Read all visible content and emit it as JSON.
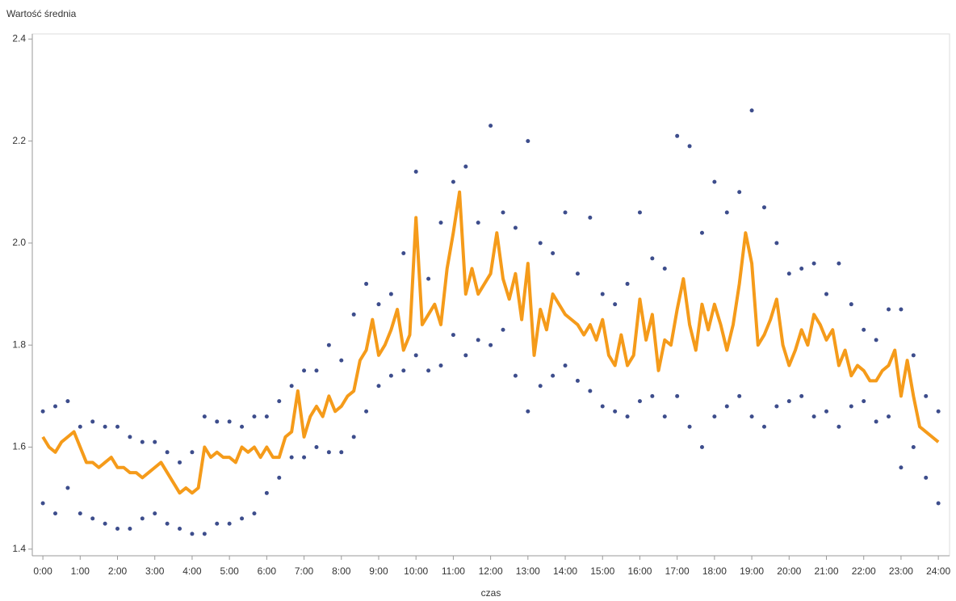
{
  "chart_data": {
    "type": "scatter-line",
    "y_label": "Wartość średnia",
    "x_label": "czas",
    "xlim": [
      -17,
      1458
    ],
    "ylim": [
      1.387,
      2.41
    ],
    "xticks": [
      {
        "value": 0,
        "label": "0:00"
      },
      {
        "value": 60,
        "label": "1:00"
      },
      {
        "value": 120,
        "label": "2:00"
      },
      {
        "value": 180,
        "label": "3:00"
      },
      {
        "value": 240,
        "label": "4:00"
      },
      {
        "value": 300,
        "label": "5:00"
      },
      {
        "value": 360,
        "label": "6:00"
      },
      {
        "value": 420,
        "label": "7:00"
      },
      {
        "value": 480,
        "label": "8:00"
      },
      {
        "value": 540,
        "label": "9:00"
      },
      {
        "value": 600,
        "label": "10:00"
      },
      {
        "value": 660,
        "label": "11:00"
      },
      {
        "value": 720,
        "label": "12:00"
      },
      {
        "value": 780,
        "label": "13:00"
      },
      {
        "value": 840,
        "label": "14:00"
      },
      {
        "value": 900,
        "label": "15:00"
      },
      {
        "value": 960,
        "label": "16:00"
      },
      {
        "value": 1020,
        "label": "17:00"
      },
      {
        "value": 1080,
        "label": "18:00"
      },
      {
        "value": 1140,
        "label": "19:00"
      },
      {
        "value": 1200,
        "label": "20:00"
      },
      {
        "value": 1260,
        "label": "21:00"
      },
      {
        "value": 1320,
        "label": "22:00"
      },
      {
        "value": 1380,
        "label": "23:00"
      },
      {
        "value": 1440,
        "label": "24:00"
      }
    ],
    "yticks": [
      1.4,
      1.6,
      1.8,
      {
        "value": 2,
        "label": "2.0"
      },
      2.2,
      2.4
    ],
    "series": [
      {
        "type": "scatter",
        "color": "#3d4d8c",
        "x": [
          0,
          20,
          40,
          60,
          80,
          100,
          120,
          140,
          160,
          180,
          200,
          220,
          240,
          260,
          280,
          300,
          320,
          340,
          360,
          380,
          400,
          420,
          440,
          460,
          480,
          500,
          520,
          540,
          560,
          580,
          600,
          620,
          640,
          660,
          680,
          700,
          720,
          740,
          760,
          780,
          800,
          820,
          840,
          860,
          880,
          900,
          920,
          940,
          960,
          980,
          1000,
          1020,
          1040,
          1060,
          1080,
          1100,
          1120,
          1140,
          1160,
          1180,
          1200,
          1220,
          1240,
          1260,
          1280,
          1300,
          1320,
          1340,
          1360,
          1380,
          1400,
          1420,
          1440
        ],
        "values": [
          1.67,
          1.68,
          1.69,
          1.64,
          1.65,
          1.64,
          1.64,
          1.62,
          1.61,
          1.61,
          1.59,
          1.57,
          1.59,
          1.66,
          1.65,
          1.65,
          1.64,
          1.66,
          1.66,
          1.69,
          1.72,
          1.75,
          1.75,
          1.8,
          1.77,
          1.86,
          1.92,
          1.88,
          1.9,
          1.98,
          2.14,
          1.93,
          2.04,
          2.12,
          2.15,
          2.04,
          2.23,
          2.06,
          2.03,
          2.2,
          2.0,
          1.98,
          2.06,
          1.94,
          2.05,
          1.9,
          1.88,
          1.92,
          2.06,
          1.97,
          1.95,
          2.21,
          2.19,
          2.02,
          2.12,
          2.06,
          2.1,
          2.26,
          2.07,
          2.0,
          1.94,
          1.95,
          1.96,
          1.9,
          1.96,
          1.88,
          1.83,
          1.81,
          1.87,
          1.87,
          1.78,
          1.7,
          1.67
        ]
      },
      {
        "type": "scatter",
        "color": "#3d4d8c",
        "x": [
          0,
          20,
          40,
          60,
          80,
          100,
          120,
          140,
          160,
          180,
          200,
          220,
          240,
          260,
          280,
          300,
          320,
          340,
          360,
          380,
          400,
          420,
          440,
          460,
          480,
          500,
          520,
          540,
          560,
          580,
          600,
          620,
          640,
          660,
          680,
          700,
          720,
          740,
          760,
          780,
          800,
          820,
          840,
          860,
          880,
          900,
          920,
          940,
          960,
          980,
          1000,
          1020,
          1040,
          1060,
          1080,
          1100,
          1120,
          1140,
          1160,
          1180,
          1200,
          1220,
          1240,
          1260,
          1280,
          1300,
          1320,
          1340,
          1360,
          1380,
          1400,
          1420,
          1440
        ],
        "values": [
          1.49,
          1.47,
          1.52,
          1.47,
          1.46,
          1.45,
          1.44,
          1.44,
          1.46,
          1.47,
          1.45,
          1.44,
          1.43,
          1.43,
          1.45,
          1.45,
          1.46,
          1.47,
          1.51,
          1.54,
          1.58,
          1.58,
          1.6,
          1.59,
          1.59,
          1.62,
          1.67,
          1.72,
          1.74,
          1.75,
          1.78,
          1.75,
          1.76,
          1.82,
          1.78,
          1.81,
          1.8,
          1.83,
          1.74,
          1.67,
          1.72,
          1.74,
          1.76,
          1.73,
          1.71,
          1.68,
          1.67,
          1.66,
          1.69,
          1.7,
          1.66,
          1.7,
          1.64,
          1.6,
          1.66,
          1.68,
          1.7,
          1.66,
          1.64,
          1.68,
          1.69,
          1.7,
          1.66,
          1.67,
          1.64,
          1.68,
          1.69,
          1.65,
          1.66,
          1.56,
          1.6,
          1.54,
          1.49
        ]
      },
      {
        "type": "line",
        "color": "#f59b1a",
        "x": [
          0,
          10,
          20,
          30,
          40,
          50,
          60,
          70,
          80,
          90,
          100,
          110,
          120,
          130,
          140,
          150,
          160,
          170,
          180,
          190,
          200,
          210,
          220,
          230,
          240,
          250,
          260,
          270,
          280,
          290,
          300,
          310,
          320,
          330,
          340,
          350,
          360,
          370,
          380,
          390,
          400,
          410,
          420,
          430,
          440,
          450,
          460,
          470,
          480,
          490,
          500,
          510,
          520,
          530,
          540,
          550,
          560,
          570,
          580,
          590,
          600,
          610,
          620,
          630,
          640,
          650,
          660,
          670,
          680,
          690,
          700,
          710,
          720,
          730,
          740,
          750,
          760,
          770,
          780,
          790,
          800,
          810,
          820,
          830,
          840,
          850,
          860,
          870,
          880,
          890,
          900,
          910,
          920,
          930,
          940,
          950,
          960,
          970,
          980,
          990,
          1000,
          1010,
          1020,
          1030,
          1040,
          1050,
          1060,
          1070,
          1080,
          1090,
          1100,
          1110,
          1120,
          1130,
          1140,
          1150,
          1160,
          1170,
          1180,
          1190,
          1200,
          1210,
          1220,
          1230,
          1240,
          1250,
          1260,
          1270,
          1280,
          1290,
          1300,
          1310,
          1320,
          1330,
          1340,
          1350,
          1360,
          1370,
          1380,
          1390,
          1400,
          1410,
          1420,
          1430,
          1440
        ],
        "values": [
          1.62,
          1.6,
          1.59,
          1.61,
          1.62,
          1.63,
          1.6,
          1.57,
          1.57,
          1.56,
          1.57,
          1.58,
          1.56,
          1.56,
          1.55,
          1.55,
          1.54,
          1.55,
          1.56,
          1.57,
          1.55,
          1.53,
          1.51,
          1.52,
          1.51,
          1.52,
          1.6,
          1.58,
          1.59,
          1.58,
          1.58,
          1.57,
          1.6,
          1.59,
          1.6,
          1.58,
          1.6,
          1.58,
          1.58,
          1.62,
          1.63,
          1.71,
          1.62,
          1.66,
          1.68,
          1.66,
          1.7,
          1.67,
          1.68,
          1.7,
          1.71,
          1.77,
          1.79,
          1.85,
          1.78,
          1.8,
          1.83,
          1.87,
          1.79,
          1.82,
          2.05,
          1.84,
          1.86,
          1.88,
          1.84,
          1.95,
          2.02,
          2.1,
          1.9,
          1.95,
          1.9,
          1.92,
          1.94,
          2.02,
          1.93,
          1.89,
          1.94,
          1.85,
          1.96,
          1.78,
          1.87,
          1.83,
          1.9,
          1.88,
          1.86,
          1.85,
          1.84,
          1.82,
          1.84,
          1.81,
          1.85,
          1.78,
          1.76,
          1.82,
          1.76,
          1.78,
          1.89,
          1.81,
          1.86,
          1.75,
          1.81,
          1.8,
          1.87,
          1.93,
          1.84,
          1.79,
          1.88,
          1.83,
          1.88,
          1.84,
          1.79,
          1.84,
          1.92,
          2.02,
          1.96,
          1.8,
          1.82,
          1.85,
          1.89,
          1.8,
          1.76,
          1.79,
          1.83,
          1.8,
          1.86,
          1.84,
          1.81,
          1.83,
          1.76,
          1.79,
          1.74,
          1.76,
          1.75,
          1.73,
          1.73,
          1.75,
          1.76,
          1.79,
          1.7,
          1.77,
          1.7,
          1.64,
          1.63,
          1.62,
          1.61
        ]
      }
    ]
  }
}
